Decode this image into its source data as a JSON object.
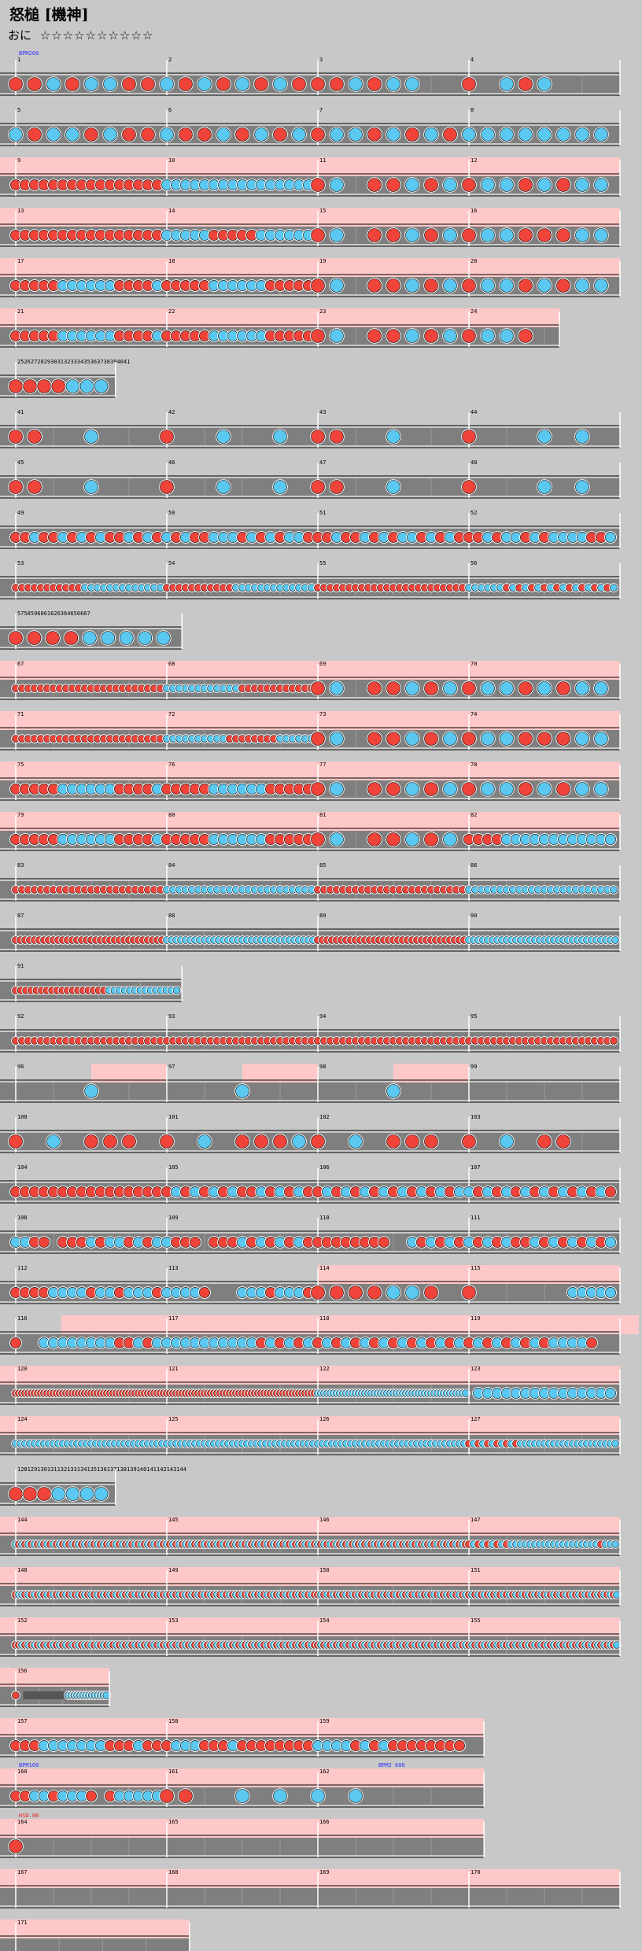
{
  "title": "怒槌 [機神]",
  "difficulty": {
    "label": "おに",
    "stars": "☆☆☆☆☆☆☆☆☆☆"
  },
  "colors": {
    "background": "#c8c8c8",
    "lane": "#7f7f7f",
    "gogo": "#ffc8c8",
    "don": "#f0443a",
    "ka": "#5ac8f0",
    "roll_red": "#f0443a",
    "roll_blue": "#5ac8f0"
  },
  "rows": [
    {
      "bars": [
        {
          "n": 1,
          "q": 8,
          "seq": "11212211"
        },
        {
          "n": 2,
          "q": 8,
          "seq": "21212121"
        },
        {
          "n": 3,
          "q": 8,
          "seq": "11212200"
        },
        {
          "n": 4,
          "q": 8,
          "seq": "10B1D000"
        }
      ],
      "ann": [
        {
          "bar": 0,
          "text": "BPM200",
          "c": "#3333ff"
        }
      ]
    },
    {
      "bars": [
        {
          "n": 5,
          "q": 8,
          "seq": "21221211"
        },
        {
          "n": 6,
          "q": 8,
          "seq": "21121212"
        },
        {
          "n": 7,
          "q": 8,
          "seq": "12212121"
        },
        {
          "n": 8,
          "q": 8,
          "seq": "22222222"
        }
      ]
    },
    {
      "gogo": true,
      "bars": [
        {
          "n": 9,
          "q": 16,
          "seq": "1111111111111111"
        },
        {
          "n": 10,
          "q": 16,
          "seq": "2222222222222222"
        },
        {
          "n": 11,
          "q": 8,
          "seq": "12011212"
        },
        {
          "n": 12,
          "q": 8,
          "seq": "12212122"
        }
      ]
    },
    {
      "gogo": true,
      "bars": [
        {
          "n": 13,
          "q": 16,
          "seq": "1111111111111111"
        },
        {
          "n": 14,
          "q": 16,
          "seq": "2222211111222222"
        },
        {
          "n": 15,
          "q": 8,
          "seq": "12011212"
        },
        {
          "n": 16,
          "q": 8,
          "seq": "12211122"
        }
      ]
    },
    {
      "gogo": true,
      "bars": [
        {
          "n": 17,
          "q": 16,
          "seq": "1111122222211112"
        },
        {
          "n": 18,
          "q": 16,
          "seq": "1111122222211111"
        },
        {
          "n": 19,
          "q": 8,
          "seq": "12011212"
        },
        {
          "n": 20,
          "q": 8,
          "seq": "12212122"
        }
      ]
    },
    {
      "gogo": true,
      "bars": [
        {
          "n": 21,
          "q": 16,
          "seq": "1111122222211112"
        },
        {
          "n": 22,
          "q": 16,
          "seq": "1111122222211111"
        },
        {
          "n": 23,
          "q": 8,
          "seq": "12011212"
        },
        {
          "n": 24,
          "q": 8,
          "seq": "12210000"
        }
      ],
      "width": 3.6
    },
    {
      "bars": [
        {
          "n": "25",
          "q": 7,
          "seq": "1111222"
        }
      ],
      "width": 0.66,
      "labels": "2526272829303132333435363738394041"
    },
    {
      "bars": [
        {
          "n": 41,
          "q": 8,
          "seq": "11002000"
        },
        {
          "n": 42,
          "q": 8,
          "seq": "10020020"
        },
        {
          "n": 43,
          "q": 8,
          "seq": "11002000"
        },
        {
          "n": 44,
          "q": 8,
          "seq": "10002020"
        }
      ]
    },
    {
      "bars": [
        {
          "n": 45,
          "q": 8,
          "seq": "11002000"
        },
        {
          "n": 46,
          "q": 8,
          "seq": "10020020"
        },
        {
          "n": 47,
          "q": 8,
          "seq": "11002000"
        },
        {
          "n": 48,
          "q": 8,
          "seq": "10002020"
        }
      ]
    },
    {
      "bars": [
        {
          "n": 49,
          "q": 16,
          "seq": "1121121212112121"
        },
        {
          "n": 50,
          "q": 16,
          "seq": "2121122212121221"
        },
        {
          "n": 51,
          "q": 16,
          "seq": "1121121212212121"
        },
        {
          "n": 52,
          "q": 16,
          "seq": "1121221212222112"
        }
      ]
    },
    {
      "bars": [
        {
          "n": 53,
          "q": 24,
          "seq": "111111111112222222222222"
        },
        {
          "n": 54,
          "q": 24,
          "seq": "111111111112222222222222"
        },
        {
          "n": 55,
          "q": 24,
          "seq": "111111111111111111111111"
        },
        {
          "n": 56,
          "q": 24,
          "seq": "222222121212121212121212"
        }
      ]
    },
    {
      "bars": [
        {
          "n": 57,
          "q": 9,
          "seq": "111122222"
        }
      ],
      "width": 1.1,
      "labels": "5758596061626364656667"
    },
    {
      "gogo": true,
      "bars": [
        {
          "n": 67,
          "q": 24,
          "seq": "111111111111111111111111"
        },
        {
          "n": 68,
          "q": 24,
          "seq": "222222222222111111111111"
        },
        {
          "n": 69,
          "q": 8,
          "seq": "12011212"
        },
        {
          "n": 70,
          "q": 8,
          "seq": "12212122"
        }
      ]
    },
    {
      "gogo": true,
      "bars": [
        {
          "n": 71,
          "q": 24,
          "seq": "111111111111111111111111"
        },
        {
          "n": 72,
          "q": 24,
          "seq": "222222222211111111222222"
        },
        {
          "n": 73,
          "q": 8,
          "seq": "12011212"
        },
        {
          "n": 74,
          "q": 8,
          "seq": "12211122"
        }
      ]
    },
    {
      "gogo": true,
      "bars": [
        {
          "n": 75,
          "q": 16,
          "seq": "1111122222211112"
        },
        {
          "n": 76,
          "q": 16,
          "seq": "1111122222211111"
        },
        {
          "n": 77,
          "q": 8,
          "seq": "12011212"
        },
        {
          "n": 78,
          "q": 8,
          "seq": "12212122"
        }
      ]
    },
    {
      "gogo": true,
      "bars": [
        {
          "n": 79,
          "q": 16,
          "seq": "1111122222211112"
        },
        {
          "n": 80,
          "q": 16,
          "seq": "1111122222211111"
        },
        {
          "n": 81,
          "q": 8,
          "seq": "12011212"
        },
        {
          "n": 82,
          "q": 16,
          "seq": "1111222222222222"
        }
      ]
    },
    {
      "bars": [
        {
          "n": 83,
          "q": 24,
          "seq": "111111111111111111111111"
        },
        {
          "n": 84,
          "q": 24,
          "seq": "222222222222222222222222"
        },
        {
          "n": 85,
          "q": 24,
          "seq": "111111111111111111111111"
        },
        {
          "n": 86,
          "q": 24,
          "seq": "222222222222222222222222"
        }
      ]
    },
    {
      "bars": [
        {
          "n": 87,
          "q": 32,
          "seq": "11111111111111111111111111111111"
        },
        {
          "n": 88,
          "q": 32,
          "seq": "22222222222222222222222222222222"
        },
        {
          "n": 89,
          "q": 32,
          "seq": "11111111111111111111111111111111"
        },
        {
          "n": 90,
          "q": 32,
          "seq": "22222222222222222222222222222222"
        }
      ]
    },
    {
      "bars": [
        {
          "n": 91,
          "q": 32,
          "seq": "11111111111111111122222222222222"
        }
      ],
      "width": 1.1
    },
    {
      "bars": [
        {
          "n": 92,
          "q": 24,
          "seq": "111111111111111111111111"
        },
        {
          "n": 93,
          "q": 24,
          "seq": "111111111111111111111111"
        },
        {
          "n": 94,
          "q": 24,
          "seq": "111111111111111111111111"
        },
        {
          "n": 95,
          "q": 24,
          "seq": "111111111111111111111111"
        }
      ]
    },
    {
      "bars": [
        {
          "n": 96,
          "q": 2,
          "seq": "0D"
        },
        {
          "n": 97,
          "q": 2,
          "seq": "0D"
        },
        {
          "n": 98,
          "q": 2,
          "seq": "0D"
        },
        {
          "n": 99,
          "q": 2,
          "seq": "00"
        }
      ],
      "halfgogo": true
    },
    {
      "bars": [
        {
          "n": 100,
          "q": 8,
          "seq": "10201110"
        },
        {
          "n": 101,
          "q": 8,
          "seq": "10201112"
        },
        {
          "n": 102,
          "q": 8,
          "seq": "10201110"
        },
        {
          "n": 103,
          "q": 8,
          "seq": "10201100"
        }
      ]
    },
    {
      "bars": [
        {
          "n": 104,
          "q": 16,
          "seq": "1111111111111111"
        },
        {
          "n": 105,
          "q": 16,
          "seq": "1212121211212121"
        },
        {
          "n": 106,
          "q": 16,
          "seq": "1212121212121212"
        },
        {
          "n": 107,
          "q": 16,
          "seq": "2121212121212121"
        }
      ]
    },
    {
      "bars": [
        {
          "n": 108,
          "q": 16,
          "seq": "2211011121221212"
        },
        {
          "n": 109,
          "q": 16,
          "seq": "2111011121212121"
        },
        {
          "n": 110,
          "q": 16,
          "seq": "1111111100212121"
        },
        {
          "n": 111,
          "q": 16,
          "seq": "2121211212121212"
        }
      ]
    },
    {
      "bars": [
        {
          "n": 112,
          "q": 16,
          "seq": "1111222212212221"
        },
        {
          "n": 113,
          "q": 16,
          "seq": "2222100022212221"
        },
        {
          "n": 114,
          "q": 8,
          "seq": "1111D2C0"
        },
        {
          "n": 115,
          "q": 16,
          "seq": "C000000000022222"
        }
      ],
      "gogo_bars": [
        2,
        3
      ]
    },
    {
      "bars": [
        {
          "n": 116,
          "q": 16,
          "seq": "1002222222211212"
        },
        {
          "n": 117,
          "q": 16,
          "seq": "2222222222121212"
        },
        {
          "n": 118,
          "q": 16,
          "seq": "1212121212121212"
        },
        {
          "n": 119,
          "q": 16,
          "seq": "1212121212222100"
        }
      ],
      "gogo_from": 0.3
    },
    {
      "gogo": true,
      "bars": [
        {
          "n": 120,
          "q": 48,
          "seq": "111111111111111111111111111111111111111111111111"
        },
        {
          "n": 121,
          "q": 48,
          "seq": "111111111111111111111111111111111111111111111111"
        },
        {
          "n": 122,
          "q": 48,
          "seq": "222222222222222222222222222222222222222222222222"
        },
        {
          "n": 123,
          "q": 16,
          "seq": "0222222222222222"
        }
      ]
    },
    {
      "gogo": true,
      "bars": [
        {
          "n": 124,
          "q": 32,
          "seq": "22222222222222222222222222222222"
        },
        {
          "n": 125,
          "q": 32,
          "seq": "22222222222222222222222222222222"
        },
        {
          "n": 126,
          "q": 32,
          "seq": "22222222222222222222222222222222"
        },
        {
          "n": 127,
          "q": 32,
          "seq": "12121212121222222222222222222222"
        }
      ]
    },
    {
      "bars": [
        {
          "n": "128",
          "q": 7,
          "seq": "1112222"
        }
      ],
      "width": 0.66,
      "labels": "128129130131132133134135136137138139140141142143144"
    },
    {
      "gogo": true,
      "bars": [
        {
          "n": 144,
          "q": 48,
          "seq": "212121212121212121212121212121212121212121212121"
        },
        {
          "n": 145,
          "q": 48,
          "seq": "212121212121212121212121212121212121212121212121"
        },
        {
          "n": 146,
          "q": 48,
          "seq": "212121212121212121212121212121212121212121212121"
        },
        {
          "n": 147,
          "q": 32,
          "seq": "12121212122222222222222222221222"
        }
      ]
    },
    {
      "gogo": true,
      "bars": [
        {
          "n": 148,
          "q": 48,
          "seq": "122121212121212121212121212121212121212121212121"
        },
        {
          "n": 149,
          "q": 48,
          "seq": "212121212121212121212121212121212121212121212121"
        },
        {
          "n": 150,
          "q": 48,
          "seq": "121212121212121212121212121212121212121212121212"
        },
        {
          "n": 151,
          "q": 48,
          "seq": "121212121212121212121212121212121212121212121212"
        }
      ]
    },
    {
      "gogo": true,
      "bars": [
        {
          "n": 152,
          "q": 48,
          "seq": "112121212121212121212121212121212121212121212121"
        },
        {
          "n": 153,
          "q": 48,
          "seq": "212121212121212121212121212121212121212121212121"
        },
        {
          "n": 154,
          "q": 48,
          "seq": "121212121212121212121212121212121212121212121212"
        },
        {
          "n": 155,
          "q": 48,
          "seq": "121212121212121212121212121212121212121212121212"
        }
      ]
    },
    {
      "gogo": true,
      "bars": [
        {
          "n": 156,
          "q": 32,
          "seq": "10000000000000000022222222222222"
        }
      ],
      "width": 0.62,
      "roll": {
        "from": 0.08,
        "to": 0.52
      }
    },
    {
      "gogo": true,
      "bars": [
        {
          "n": 157,
          "q": 16,
          "seq": "1112222222111211"
        },
        {
          "n": 158,
          "q": 16,
          "seq": "1222111211111111"
        },
        {
          "n": 159,
          "q": 16,
          "seq": "2222121211111111"
        }
      ],
      "width": 3.1
    },
    {
      "gogo": true,
      "bars": [
        {
          "n": 160,
          "q": 16,
          "seq": "1122122210122222"
        },
        {
          "n": 161,
          "q": 8,
          "seq": "11002020"
        },
        {
          "n": 162,
          "q": 8,
          "seq": "20200000"
        }
      ],
      "width": 3.1,
      "ann": [
        {
          "bar": 0,
          "text": "BPM160",
          "c": "#3333ff"
        },
        {
          "bar": 2,
          "text": "BPM2 600",
          "c": "#3333ff",
          "at": 0.38
        }
      ]
    },
    {
      "gogo": true,
      "bars": [
        {
          "n": 164,
          "q": 1,
          "seq": "C"
        },
        {
          "n": 165,
          "q": 1,
          "seq": "0"
        },
        {
          "n": 166,
          "q": 1,
          "seq": "0"
        }
      ],
      "width": 3.1,
      "ann": [
        {
          "bar": 0,
          "text": "HSD.06",
          "c": "#ee2222"
        }
      ]
    },
    {
      "gogo": true,
      "bars": [
        {
          "n": 167,
          "q": 1,
          "seq": "0"
        },
        {
          "n": 168,
          "q": 1,
          "seq": "0"
        },
        {
          "n": 169,
          "q": 1,
          "seq": "0"
        },
        {
          "n": 170,
          "q": 1,
          "seq": "0"
        }
      ]
    },
    {
      "gogo": true,
      "bars": [
        {
          "n": 171,
          "q": 1,
          "seq": "0"
        }
      ],
      "width": 1.15
    }
  ]
}
